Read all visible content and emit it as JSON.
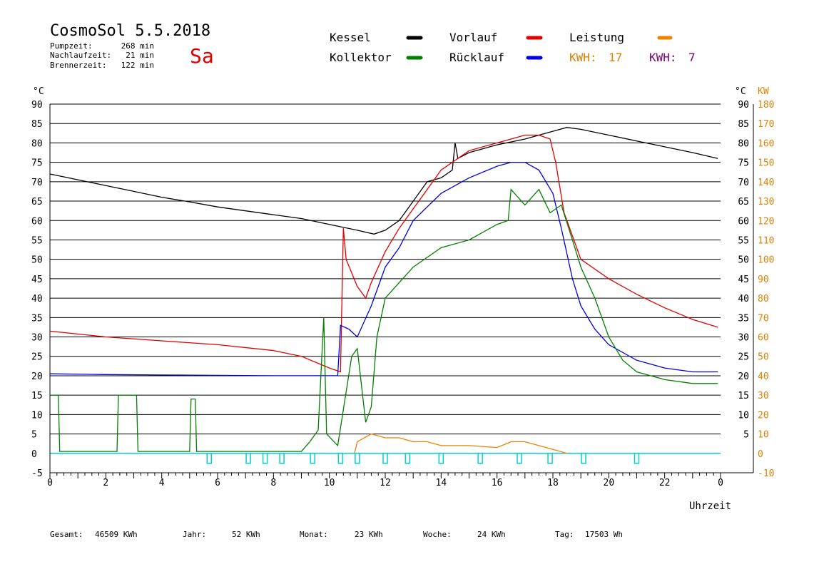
{
  "header": {
    "title": "CosmoSol 5.5.2018",
    "day": "Sa",
    "stats": [
      {
        "label": "Pumpzeit:",
        "value": "268 min"
      },
      {
        "label": "Nachlaufzeit:",
        "value": "21 min"
      },
      {
        "label": "Brennerzeit:",
        "value": "122 min"
      }
    ]
  },
  "legend": {
    "items": [
      {
        "label": "Kessel",
        "color": "#000000"
      },
      {
        "label": "Vorlauf",
        "color": "#e00000"
      },
      {
        "label": "Leistung",
        "color": "#f08000"
      },
      {
        "label": "Kollektor",
        "color": "#008000"
      },
      {
        "label": "Rücklauf",
        "color": "#0000e0"
      }
    ],
    "kwh": [
      {
        "label": "KWH:",
        "value": "17",
        "color": "#e08000"
      },
      {
        "label": "KWH:",
        "value": "7",
        "color": "#800080"
      }
    ]
  },
  "footer": [
    {
      "label": "Gesamt:",
      "value": "46509 KWh"
    },
    {
      "label": "Jahr:",
      "value": "52 KWh"
    },
    {
      "label": "Monat:",
      "value": "23 KWh"
    },
    {
      "label": "Woche:",
      "value": "24 KWh"
    },
    {
      "label": "Tag:",
      "value": "17503 Wh"
    }
  ],
  "chart_data": {
    "type": "line",
    "xlabel": "Uhrzeit",
    "ylabel_left": "°C",
    "ylabel_right_c": "°C",
    "ylabel_right_kw": "KW",
    "xlim": [
      0,
      24
    ],
    "ylim": [
      -5,
      90
    ],
    "y_ticks_left": [
      "90",
      "85",
      "80",
      "75",
      "70",
      "65",
      "60",
      "55",
      "50",
      "45",
      "40",
      "35",
      "30",
      "25",
      "20",
      "15",
      "10",
      "5",
      "0",
      "-5"
    ],
    "y_ticks_right_c": [
      "90",
      "85",
      "80",
      "75",
      "70",
      "65",
      "60",
      "55",
      "50",
      "45",
      "40",
      "35",
      "30",
      "25",
      "20",
      "15",
      "10",
      "5"
    ],
    "y_ticks_right_kw": [
      "180",
      "170",
      "160",
      "150",
      "140",
      "130",
      "120",
      "110",
      "100",
      "90",
      "80",
      "70",
      "60",
      "50",
      "40",
      "30",
      "20",
      "10",
      "0",
      "-10"
    ],
    "x_ticks": [
      "0",
      "2",
      "4",
      "6",
      "8",
      "10",
      "12",
      "14",
      "16",
      "18",
      "20",
      "22",
      "0"
    ],
    "grid": true,
    "series": [
      {
        "name": "Kessel",
        "color": "#000000",
        "points": [
          [
            0,
            72
          ],
          [
            1,
            70.5
          ],
          [
            2,
            69
          ],
          [
            3,
            67.5
          ],
          [
            4,
            66
          ],
          [
            5,
            64.8
          ],
          [
            6,
            63.5
          ],
          [
            7,
            62.5
          ],
          [
            8,
            61.5
          ],
          [
            9,
            60.5
          ],
          [
            10,
            59
          ],
          [
            11,
            57.5
          ],
          [
            11.6,
            56.5
          ],
          [
            12,
            57.5
          ],
          [
            12.5,
            60
          ],
          [
            13,
            65
          ],
          [
            13.5,
            70
          ],
          [
            14,
            71
          ],
          [
            14.4,
            73
          ],
          [
            14.5,
            80
          ],
          [
            14.6,
            76
          ],
          [
            15,
            77.5
          ],
          [
            16,
            79.5
          ],
          [
            17,
            81
          ],
          [
            18,
            83
          ],
          [
            18.5,
            84
          ],
          [
            19,
            83.5
          ],
          [
            20,
            82
          ],
          [
            21,
            80.5
          ],
          [
            22,
            79
          ],
          [
            23,
            77.5
          ],
          [
            23.9,
            76
          ]
        ]
      },
      {
        "name": "Vorlauf",
        "color": "#e00000",
        "points": [
          [
            0,
            31.5
          ],
          [
            2,
            30
          ],
          [
            4,
            29
          ],
          [
            6,
            28
          ],
          [
            8,
            26.5
          ],
          [
            9,
            25
          ],
          [
            10,
            22
          ],
          [
            10.4,
            21
          ],
          [
            10.5,
            58
          ],
          [
            10.6,
            50
          ],
          [
            11,
            43
          ],
          [
            11.3,
            40
          ],
          [
            11.5,
            44
          ],
          [
            12,
            52
          ],
          [
            12.5,
            58
          ],
          [
            13,
            63
          ],
          [
            13.5,
            68
          ],
          [
            14,
            73
          ],
          [
            15,
            78
          ],
          [
            16,
            80
          ],
          [
            16.5,
            81
          ],
          [
            17,
            82
          ],
          [
            17.5,
            82
          ],
          [
            17.9,
            81
          ],
          [
            18.1,
            75
          ],
          [
            18.4,
            62
          ],
          [
            19,
            50
          ],
          [
            20,
            45
          ],
          [
            21,
            41
          ],
          [
            22,
            37.5
          ],
          [
            23,
            34.5
          ],
          [
            23.9,
            32.5
          ]
        ]
      },
      {
        "name": "Rücklauf",
        "color": "#0000e0",
        "points": [
          [
            0,
            20.5
          ],
          [
            2,
            20.3
          ],
          [
            4,
            20.2
          ],
          [
            6,
            20.1
          ],
          [
            8,
            20
          ],
          [
            10,
            20
          ],
          [
            10.3,
            20
          ],
          [
            10.4,
            33
          ],
          [
            10.7,
            32
          ],
          [
            11,
            30
          ],
          [
            11.5,
            38
          ],
          [
            12,
            48
          ],
          [
            12.5,
            53
          ],
          [
            13,
            60
          ],
          [
            14,
            67
          ],
          [
            15,
            71
          ],
          [
            16,
            74
          ],
          [
            16.5,
            75
          ],
          [
            17,
            75
          ],
          [
            17.5,
            73
          ],
          [
            18,
            67
          ],
          [
            18.3,
            58
          ],
          [
            18.7,
            45
          ],
          [
            19,
            38
          ],
          [
            19.5,
            32
          ],
          [
            20,
            28
          ],
          [
            21,
            24
          ],
          [
            22,
            22
          ],
          [
            23,
            21
          ],
          [
            23.9,
            21
          ]
        ]
      },
      {
        "name": "Kollektor",
        "color": "#008000",
        "points": [
          [
            0,
            15
          ],
          [
            0.3,
            15
          ],
          [
            0.35,
            0.5
          ],
          [
            2,
            0.5
          ],
          [
            2.4,
            0.5
          ],
          [
            2.45,
            15
          ],
          [
            3.1,
            15
          ],
          [
            3.15,
            0.5
          ],
          [
            5,
            0.5
          ],
          [
            5.05,
            14
          ],
          [
            5.2,
            14
          ],
          [
            5.25,
            0.5
          ],
          [
            7,
            0.5
          ],
          [
            9,
            0.5
          ],
          [
            9.3,
            3
          ],
          [
            9.6,
            6
          ],
          [
            9.8,
            35
          ],
          [
            9.9,
            5
          ],
          [
            10.3,
            2
          ],
          [
            10.8,
            25
          ],
          [
            11,
            27
          ],
          [
            11.3,
            8
          ],
          [
            11.5,
            12
          ],
          [
            11.7,
            30
          ],
          [
            12,
            40
          ],
          [
            12.5,
            44
          ],
          [
            13,
            48
          ],
          [
            14,
            53
          ],
          [
            15,
            55
          ],
          [
            16,
            59
          ],
          [
            16.4,
            60
          ],
          [
            16.5,
            68
          ],
          [
            17,
            64
          ],
          [
            17.5,
            68
          ],
          [
            17.9,
            62
          ],
          [
            18.3,
            64
          ],
          [
            18.7,
            55
          ],
          [
            19,
            48
          ],
          [
            19.5,
            40
          ],
          [
            20,
            30
          ],
          [
            20.5,
            24
          ],
          [
            21,
            21
          ],
          [
            22,
            19
          ],
          [
            23,
            18
          ],
          [
            23.9,
            18
          ]
        ]
      },
      {
        "name": "Leistung",
        "color": "#f08000",
        "points": [
          [
            10.9,
            0
          ],
          [
            11,
            3
          ],
          [
            11.5,
            5
          ],
          [
            12,
            4
          ],
          [
            12.5,
            4
          ],
          [
            13,
            3
          ],
          [
            13.5,
            3
          ],
          [
            14,
            2
          ],
          [
            15,
            2
          ],
          [
            16,
            1.5
          ],
          [
            16.5,
            3
          ],
          [
            17,
            3
          ],
          [
            17.5,
            2
          ],
          [
            18,
            1
          ],
          [
            18.5,
            0
          ]
        ]
      }
    ]
  }
}
